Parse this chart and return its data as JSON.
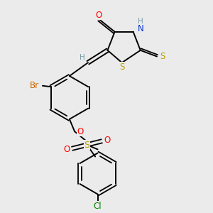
{
  "bg_color": "#ebebeb",
  "bond_color": "#000000",
  "colors": {
    "O": "#ff0000",
    "N": "#0033cc",
    "S": "#b8a000",
    "H": "#7a9ea8",
    "Br": "#cc6600",
    "Cl": "#008000"
  },
  "figsize": [
    3.0,
    3.0
  ],
  "dpi": 100
}
